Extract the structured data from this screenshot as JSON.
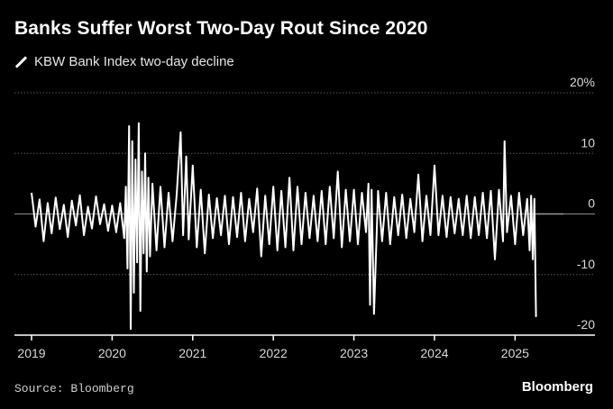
{
  "chart_data": {
    "type": "line",
    "title": "Banks Suffer Worst Two-Day Rout Since 2020",
    "series": [
      {
        "name": "KBW Bank Index two-day decline",
        "color": "#ffffff",
        "x": [
          2019.0,
          2019.05,
          2019.1,
          2019.15,
          2019.2,
          2019.25,
          2019.3,
          2019.35,
          2019.4,
          2019.45,
          2019.5,
          2019.55,
          2019.6,
          2019.65,
          2019.7,
          2019.75,
          2019.8,
          2019.85,
          2019.9,
          2019.95,
          2020.0,
          2020.05,
          2020.1,
          2020.15,
          2020.17,
          2020.19,
          2020.21,
          2020.23,
          2020.25,
          2020.27,
          2020.29,
          2020.31,
          2020.33,
          2020.35,
          2020.37,
          2020.39,
          2020.41,
          2020.43,
          2020.45,
          2020.47,
          2020.5,
          2020.55,
          2020.6,
          2020.65,
          2020.7,
          2020.75,
          2020.8,
          2020.85,
          2020.88,
          2020.92,
          2020.95,
          2021.0,
          2021.05,
          2021.1,
          2021.15,
          2021.2,
          2021.25,
          2021.3,
          2021.35,
          2021.4,
          2021.45,
          2021.5,
          2021.55,
          2021.6,
          2021.65,
          2021.7,
          2021.75,
          2021.8,
          2021.85,
          2021.9,
          2021.95,
          2022.0,
          2022.05,
          2022.1,
          2022.15,
          2022.2,
          2022.25,
          2022.3,
          2022.35,
          2022.4,
          2022.45,
          2022.5,
          2022.55,
          2022.6,
          2022.65,
          2022.7,
          2022.75,
          2022.8,
          2022.85,
          2022.9,
          2022.95,
          2023.0,
          2023.05,
          2023.1,
          2023.15,
          2023.18,
          2023.2,
          2023.22,
          2023.25,
          2023.3,
          2023.35,
          2023.4,
          2023.45,
          2023.5,
          2023.55,
          2023.6,
          2023.65,
          2023.7,
          2023.75,
          2023.8,
          2023.85,
          2023.9,
          2023.95,
          2024.0,
          2024.05,
          2024.1,
          2024.15,
          2024.2,
          2024.25,
          2024.3,
          2024.35,
          2024.4,
          2024.45,
          2024.5,
          2024.55,
          2024.6,
          2024.65,
          2024.7,
          2024.75,
          2024.8,
          2024.85,
          2024.87,
          2024.9,
          2024.95,
          2025.0,
          2025.05,
          2025.1,
          2025.15,
          2025.18,
          2025.2,
          2025.22,
          2025.24,
          2025.26
        ],
        "y": [
          3.5,
          -2.1,
          2.4,
          -4.5,
          1.8,
          -3.2,
          2.7,
          -2.5,
          1.5,
          -3.8,
          2.2,
          -1.9,
          3.1,
          -3.5,
          1.2,
          -2.4,
          2.9,
          -1.7,
          1.6,
          -2.8,
          1.4,
          -3.0,
          1.8,
          -4.0,
          4.5,
          -9.0,
          14.5,
          -19.0,
          12.0,
          -13.0,
          9.0,
          -8.0,
          15.0,
          -16.0,
          7.0,
          -6.5,
          10.0,
          -9.5,
          6.0,
          -7.0,
          5.0,
          -6.0,
          4.5,
          -5.5,
          3.5,
          -4.5,
          3.0,
          13.5,
          -3.5,
          9.5,
          -4.2,
          8.0,
          -5.5,
          4.0,
          -6.5,
          3.2,
          -4.0,
          2.6,
          -3.5,
          3.0,
          -5.0,
          2.8,
          -3.8,
          3.5,
          -4.5,
          2.5,
          -3.0,
          4.2,
          -7.0,
          3.0,
          -5.0,
          4.5,
          -6.0,
          3.8,
          -5.5,
          6.0,
          -6.0,
          4.5,
          -5.0,
          3.5,
          -4.0,
          3.0,
          -4.5,
          3.8,
          -5.0,
          4.5,
          -4.0,
          7.0,
          -5.5,
          4.0,
          -4.5,
          4.0,
          -5.0,
          3.5,
          -3.0,
          5.0,
          -15.0,
          4.0,
          -16.5,
          3.8,
          -4.5,
          3.5,
          -5.0,
          2.8,
          -3.5,
          3.2,
          -4.0,
          2.5,
          -3.0,
          6.5,
          -4.5,
          3.0,
          -3.5,
          8.0,
          -3.5,
          3.0,
          -3.8,
          2.8,
          -3.2,
          2.5,
          -3.5,
          3.0,
          -4.0,
          2.8,
          -3.5,
          3.5,
          -4.0,
          3.8,
          -7.5,
          4.0,
          -4.5,
          12.0,
          -3.0,
          3.0,
          -5.0,
          3.5,
          -3.5,
          2.5,
          -6.0,
          3.0,
          -7.5,
          2.5,
          -17.0
        ],
        "tail": {
          "x": [
            2025.26,
            2025.6
          ],
          "y": [
            0,
            0
          ]
        }
      }
    ],
    "x_ticks": [
      {
        "label": "2019",
        "value": 2019
      },
      {
        "label": "2020",
        "value": 2020
      },
      {
        "label": "2021",
        "value": 2021
      },
      {
        "label": "2022",
        "value": 2022
      },
      {
        "label": "2023",
        "value": 2023
      },
      {
        "label": "2024",
        "value": 2024
      },
      {
        "label": "2025",
        "value": 2025
      }
    ],
    "y_ticks": [
      {
        "label": "20%",
        "value": 20
      },
      {
        "label": "10",
        "value": 10
      },
      {
        "label": "0",
        "value": 0
      },
      {
        "label": "-10",
        "value": -10
      },
      {
        "label": "-20",
        "value": -20
      }
    ],
    "xlim": [
      2019,
      2025.6
    ],
    "ylim": [
      -20,
      20
    ],
    "grid": "horizontal dotted",
    "legend": "top-left",
    "colors": {
      "background": "#000000",
      "line": "#ffffff",
      "grid": "#5a5a5a",
      "axis": "#ffffff",
      "tick_text": "#d9d9d9"
    }
  },
  "source": "Source: Bloomberg",
  "brand": "Bloomberg"
}
